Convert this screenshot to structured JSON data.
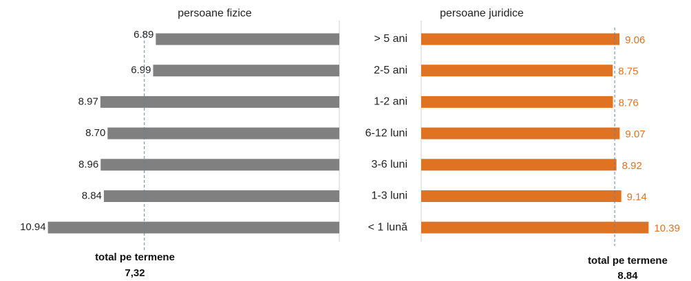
{
  "chart_data": {
    "type": "butterfly",
    "categories": [
      "> 5 ani",
      "2-5 ani",
      "1-2 ani",
      "6-12 luni",
      "3-6 luni",
      "1-3 luni",
      "< 1 lună"
    ],
    "series": [
      {
        "name": "persoane fizice",
        "color": "#808080",
        "values": [
          6.89,
          6.99,
          8.97,
          8.7,
          8.96,
          8.84,
          10.94
        ],
        "value_labels": [
          "6.89",
          "6.99",
          "8.97",
          "8.70",
          "8.96",
          "8.84",
          "10.94"
        ],
        "reference": {
          "text": "total pe termene",
          "value": 7.32,
          "label": "7,32"
        }
      },
      {
        "name": "persoane juridice",
        "color": "#e07322",
        "values": [
          9.06,
          8.75,
          8.76,
          9.07,
          8.92,
          9.14,
          10.39
        ],
        "reference": {
          "text": "total pe termene",
          "value": 8.84
        }
      }
    ]
  }
}
